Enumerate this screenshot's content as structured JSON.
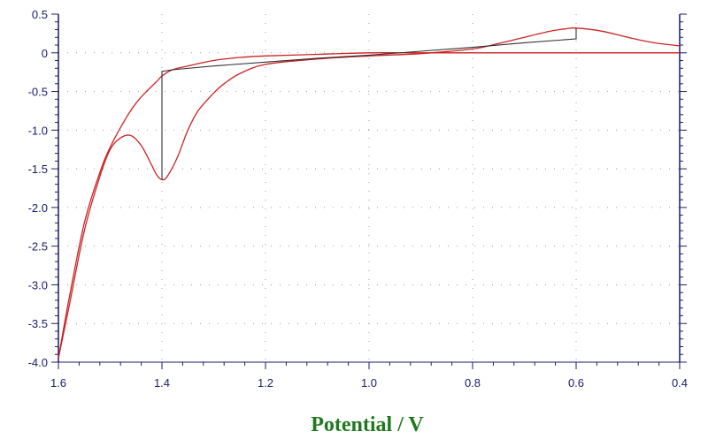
{
  "chart_data": {
    "type": "line",
    "xlabel": "Potential / V",
    "ylabel": "",
    "xlim": [
      1.6,
      0.4
    ],
    "ylim": [
      -4.0,
      0.5
    ],
    "x_reversed": true,
    "grid": "dotted",
    "x_ticks": [
      1.6,
      1.4,
      1.2,
      1.0,
      0.8,
      0.6,
      0.4
    ],
    "x_tick_labels": [
      "1.6",
      "1.4",
      "1.2",
      "1.0",
      "0.8",
      "0.6",
      "0.4"
    ],
    "y_ticks": [
      0.5,
      0,
      -0.5,
      -1.0,
      -1.5,
      -2.0,
      -2.5,
      -3.0,
      -3.5,
      -4.0
    ],
    "y_tick_labels": [
      "0.5",
      "0",
      "-0.5",
      "-1.0",
      "-1.5",
      "-2.0",
      "-2.5",
      "-3.0",
      "-3.5",
      "-4.0"
    ],
    "colors": {
      "curve": "#cc2222",
      "baseline": "#333333",
      "axis": "#1a1a6e",
      "grid": "#9999aa",
      "xlabel": "#1f7a1f"
    },
    "series": [
      {
        "role": "curve",
        "x": [
          1.6,
          1.58,
          1.55,
          1.52,
          1.5,
          1.48,
          1.46,
          1.44,
          1.42,
          1.41,
          1.4,
          1.39,
          1.37,
          1.35,
          1.33,
          1.3,
          1.28,
          1.25,
          1.2,
          1.1,
          1.0,
          0.9,
          0.8,
          0.75,
          0.7,
          0.65,
          0.62,
          0.6,
          0.55,
          0.5,
          0.45,
          0.4
        ],
        "y": [
          -3.95,
          -3.3,
          -2.3,
          -1.6,
          -1.25,
          -1.1,
          -1.07,
          -1.2,
          -1.45,
          -1.58,
          -1.64,
          -1.6,
          -1.35,
          -1.0,
          -0.75,
          -0.52,
          -0.4,
          -0.27,
          -0.15,
          -0.08,
          -0.04,
          -0.01,
          0.05,
          0.12,
          0.2,
          0.28,
          0.31,
          0.32,
          0.28,
          0.2,
          0.13,
          0.09
        ]
      },
      {
        "role": "curve",
        "x": [
          1.6,
          1.58,
          1.55,
          1.52,
          1.5,
          1.47,
          1.45,
          1.43,
          1.41,
          1.4,
          1.38,
          1.35,
          1.3,
          1.25,
          1.2,
          1.1,
          1.0,
          0.9,
          0.8,
          0.7,
          0.6,
          0.5,
          0.4
        ],
        "y": [
          -3.95,
          -3.2,
          -2.2,
          -1.55,
          -1.22,
          -0.85,
          -0.65,
          -0.5,
          -0.37,
          -0.3,
          -0.22,
          -0.17,
          -0.1,
          -0.06,
          -0.04,
          -0.02,
          0.0,
          0.0,
          0.0,
          0.0,
          0.0,
          0.0,
          0.0
        ]
      },
      {
        "role": "baseline",
        "x": [
          1.4,
          1.4,
          1.38,
          1.3,
          1.2,
          1.1,
          1.0,
          0.9,
          0.8,
          0.7,
          0.6,
          0.6
        ],
        "y": [
          -1.64,
          -0.24,
          -0.22,
          -0.17,
          -0.12,
          -0.07,
          -0.03,
          0.02,
          0.07,
          0.13,
          0.18,
          0.32
        ]
      }
    ]
  }
}
